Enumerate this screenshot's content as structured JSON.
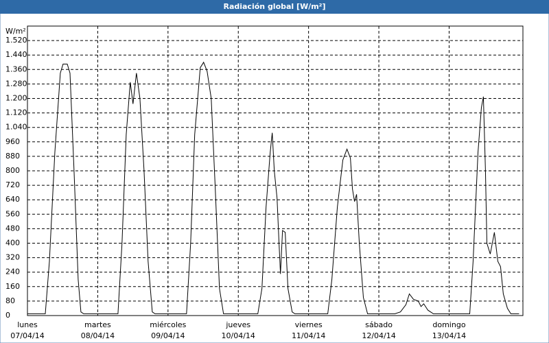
{
  "chart_data": {
    "type": "line",
    "title": "Radiación global [W/m²]",
    "y_label": "W/m²",
    "x_day_labels": [
      "lunes",
      "martes",
      "miércoles",
      "jueves",
      "viernes",
      "sábado",
      "domingo"
    ],
    "x_date_labels": [
      "07/04/14",
      "08/04/14",
      "09/04/14",
      "10/04/14",
      "11/04/14",
      "12/04/14",
      "13/04/14"
    ],
    "xlim": [
      0,
      7.05
    ],
    "xticks": [
      0,
      1,
      2,
      3,
      4,
      5,
      6
    ],
    "ylim": [
      0,
      1600
    ],
    "yticks": [
      0,
      80,
      160,
      240,
      320,
      400,
      480,
      560,
      640,
      720,
      800,
      880,
      960,
      {
        "value": 1040,
        "label": "1.040"
      },
      {
        "value": 1120,
        "label": "1.120"
      },
      {
        "value": 1200,
        "label": "1.200"
      },
      {
        "value": 1280,
        "label": "1.280"
      },
      {
        "value": 1360,
        "label": "1.360"
      },
      {
        "value": 1440,
        "label": "1.440"
      },
      {
        "value": 1520,
        "label": "1.520"
      }
    ],
    "grid": true,
    "color": "#000000",
    "x": [
      0,
      0.254,
      0.312,
      0.39,
      0.468,
      0.507,
      0.566,
      0.605,
      0.663,
      0.722,
      0.761,
      0.8,
      1.288,
      1.346,
      1.405,
      1.463,
      1.502,
      1.551,
      1.6,
      1.659,
      1.717,
      1.776,
      1.815,
      2.263,
      2.322,
      2.38,
      2.459,
      2.507,
      2.556,
      2.615,
      2.673,
      2.732,
      2.79,
      3.278,
      3.337,
      3.395,
      3.454,
      3.483,
      3.512,
      3.551,
      3.58,
      3.6,
      3.629,
      3.668,
      3.707,
      3.766,
      3.805,
      4.273,
      4.332,
      4.41,
      4.488,
      4.546,
      4.595,
      4.624,
      4.654,
      4.683,
      4.722,
      4.78,
      4.839,
      5.229,
      5.307,
      5.385,
      5.434,
      5.493,
      5.561,
      5.6,
      5.639,
      5.698,
      5.776,
      6.293,
      6.341,
      6.41,
      6.459,
      6.488,
      6.517,
      6.537,
      6.585,
      6.644,
      6.693,
      6.732,
      6.771,
      6.829,
      6.878,
      6.995
    ],
    "values": [
      10,
      10,
      300,
      900,
      1340,
      1390,
      1390,
      1340,
      800,
      200,
      20,
      10,
      10,
      400,
      1000,
      1290,
      1170,
      1340,
      1200,
      800,
      300,
      20,
      10,
      10,
      400,
      1000,
      1370,
      1400,
      1350,
      1200,
      700,
      150,
      10,
      10,
      150,
      600,
      900,
      1010,
      800,
      650,
      400,
      230,
      470,
      460,
      150,
      20,
      10,
      10,
      200,
      600,
      860,
      920,
      870,
      700,
      630,
      670,
      400,
      100,
      10,
      10,
      20,
      60,
      120,
      90,
      80,
      50,
      65,
      30,
      10,
      10,
      300,
      900,
      1150,
      1210,
      800,
      400,
      340,
      460,
      300,
      270,
      120,
      40,
      10,
      10
    ]
  }
}
